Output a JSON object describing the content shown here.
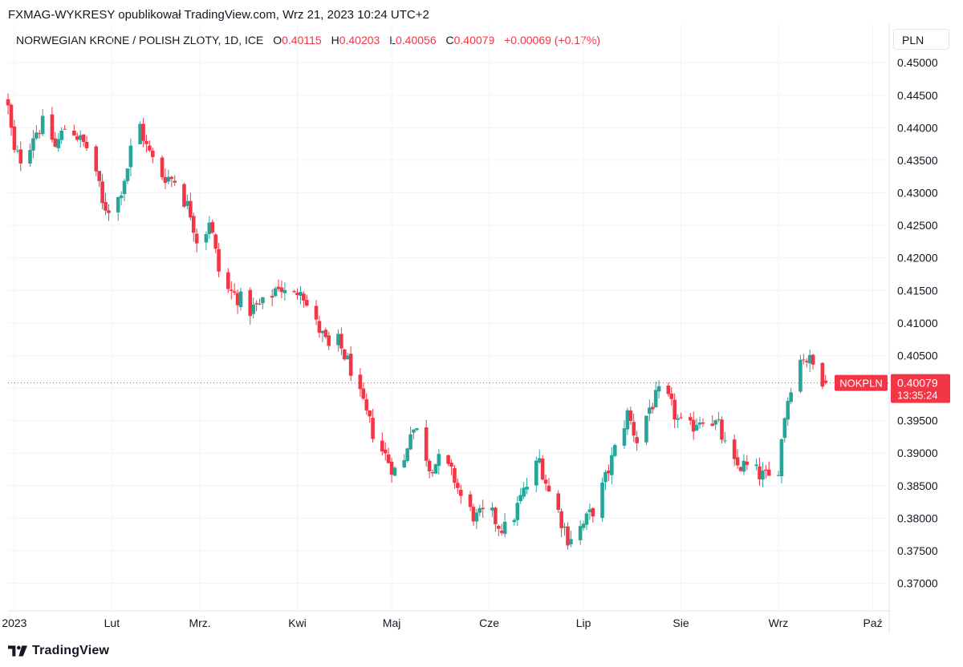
{
  "header": {
    "publisher": "FXMAG-WYKRESY opublikował TradingView.com, Wrz 21, 2023 10:24 UTC+2"
  },
  "legend": {
    "symbol": "NORWEGIAN KRONE / POLISH ZLOTY, 1D, ICE",
    "open_label": "O",
    "open": "0.40115",
    "high_label": "H",
    "high": "0.40203",
    "low_label": "L",
    "low": "0.40056",
    "close_label": "C",
    "close": "0.40079",
    "change": "+0.00069 (+0.17%)"
  },
  "currency_button": "PLN",
  "price_tag": {
    "ticker": "NOKPLN",
    "price": "0.40079",
    "countdown": "13:35:24"
  },
  "footer": {
    "brand": "TradingView"
  },
  "colors": {
    "up": "#26a69a",
    "down": "#f23645",
    "grid": "#f0f3fa",
    "text": "#131722"
  },
  "chart_data": {
    "type": "candlestick",
    "title": "NORWEGIAN KRONE / POLISH ZLOTY, 1D, ICE",
    "ylim": [
      0.366,
      0.4515
    ],
    "yticks": [
      0.45,
      0.445,
      0.44,
      0.435,
      0.43,
      0.425,
      0.42,
      0.415,
      0.41,
      0.405,
      0.4,
      0.395,
      0.39,
      0.385,
      0.38,
      0.375,
      0.37
    ],
    "ytick_labels": [
      "0.45000",
      "0.44500",
      "0.44000",
      "0.43500",
      "0.43000",
      "0.42500",
      "0.42000",
      "0.41500",
      "0.41000",
      "0.40500",
      "0.40000",
      "0.39500",
      "0.39000",
      "0.38500",
      "0.38000",
      "0.37500",
      "0.37000"
    ],
    "xtick_labels": [
      "2023",
      "Lut",
      "Mrz.",
      "Kwi",
      "Maj",
      "Cze",
      "Lip",
      "Sie",
      "Wrz",
      "Paź"
    ],
    "xtick_days": [
      2,
      33,
      61,
      92,
      122,
      153,
      183,
      214,
      245,
      275
    ],
    "last_price": 0.40079,
    "anchors": [
      [
        0,
        0.443
      ],
      [
        2,
        0.436
      ],
      [
        5,
        0.435
      ],
      [
        8,
        0.439
      ],
      [
        12,
        0.441
      ],
      [
        15,
        0.437
      ],
      [
        19,
        0.441
      ],
      [
        23,
        0.438
      ],
      [
        27,
        0.436
      ],
      [
        30,
        0.428
      ],
      [
        34,
        0.4275
      ],
      [
        38,
        0.434
      ],
      [
        41,
        0.442
      ],
      [
        44,
        0.437
      ],
      [
        48,
        0.433
      ],
      [
        53,
        0.432
      ],
      [
        58,
        0.427
      ],
      [
        61,
        0.421
      ],
      [
        64,
        0.426
      ],
      [
        67,
        0.418
      ],
      [
        70,
        0.415
      ],
      [
        73,
        0.414
      ],
      [
        77,
        0.412
      ],
      [
        82,
        0.413
      ],
      [
        86,
        0.416
      ],
      [
        90,
        0.413
      ],
      [
        93,
        0.416
      ],
      [
        96,
        0.411
      ],
      [
        99,
        0.409
      ],
      [
        102,
        0.406
      ],
      [
        105,
        0.407
      ],
      [
        109,
        0.403
      ],
      [
        113,
        0.397
      ],
      [
        117,
        0.392
      ],
      [
        122,
        0.388
      ],
      [
        125,
        0.386
      ],
      [
        128,
        0.394
      ],
      [
        131,
        0.393
      ],
      [
        134,
        0.388
      ],
      [
        138,
        0.389
      ],
      [
        142,
        0.386
      ],
      [
        145,
        0.382
      ],
      [
        149,
        0.38
      ],
      [
        153,
        0.381
      ],
      [
        156,
        0.379
      ],
      [
        159,
        0.378
      ],
      [
        163,
        0.383
      ],
      [
        166,
        0.386
      ],
      [
        169,
        0.389
      ],
      [
        172,
        0.384
      ],
      [
        175,
        0.381
      ],
      [
        178,
        0.377
      ],
      [
        181,
        0.378
      ],
      [
        183,
        0.379
      ],
      [
        187,
        0.382
      ],
      [
        190,
        0.386
      ],
      [
        194,
        0.392
      ],
      [
        197,
        0.396
      ],
      [
        200,
        0.392
      ],
      [
        204,
        0.397
      ],
      [
        207,
        0.399
      ],
      [
        210,
        0.398
      ],
      [
        213,
        0.395
      ],
      [
        216,
        0.393
      ],
      [
        219,
        0.395
      ],
      [
        222,
        0.396
      ],
      [
        226,
        0.394
      ],
      [
        228,
        0.391
      ],
      [
        231,
        0.388
      ],
      [
        234,
        0.388
      ],
      [
        238,
        0.387
      ],
      [
        242,
        0.386
      ],
      [
        245,
        0.388
      ],
      [
        247,
        0.396
      ],
      [
        250,
        0.403
      ],
      [
        253,
        0.405
      ],
      [
        255,
        0.404
      ],
      [
        257,
        0.403
      ],
      [
        260,
        0.4008
      ]
    ],
    "last_candle": {
      "open": 0.40115,
      "high": 0.40203,
      "low": 0.40056,
      "close": 0.40079
    }
  }
}
